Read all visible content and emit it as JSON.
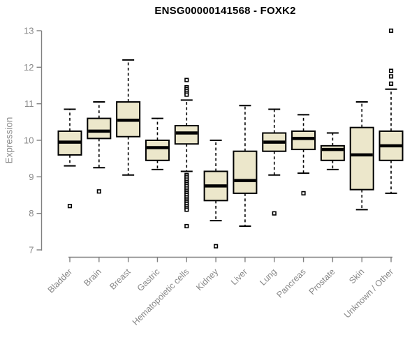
{
  "header": {
    "title": "ENSG00000141568 - FOXK2"
  },
  "chart_data": {
    "type": "boxplot",
    "title": "ENSG00000141568 - FOXK2",
    "xlabel": "",
    "ylabel": "Expression",
    "ylim": [
      7,
      13
    ],
    "yticks": [
      7,
      8,
      9,
      10,
      11,
      12,
      13
    ],
    "grid": false,
    "legend": false,
    "categories": [
      "Bladder",
      "Brain",
      "Breast",
      "Gastric",
      "Hematopoietic cells",
      "Kidney",
      "Liver",
      "Lung",
      "Pancreas",
      "Prostate",
      "Skin",
      "Unknown / Other"
    ],
    "series": [
      {
        "category": "Bladder",
        "whisker_low": 9.3,
        "q1": 9.6,
        "median": 9.95,
        "q3": 10.25,
        "whisker_high": 10.85,
        "outliers": [
          8.2
        ]
      },
      {
        "category": "Brain",
        "whisker_low": 9.25,
        "q1": 10.05,
        "median": 10.25,
        "q3": 10.6,
        "whisker_high": 11.05,
        "outliers": [
          8.6
        ]
      },
      {
        "category": "Breast",
        "whisker_low": 9.05,
        "q1": 10.1,
        "median": 10.55,
        "q3": 11.05,
        "whisker_high": 12.2,
        "outliers": []
      },
      {
        "category": "Gastric",
        "whisker_low": 9.2,
        "q1": 9.45,
        "median": 9.8,
        "q3": 10.0,
        "whisker_high": 10.6,
        "outliers": []
      },
      {
        "category": "Hematopoietic cells",
        "whisker_low": 9.15,
        "q1": 9.9,
        "median": 10.2,
        "q3": 10.4,
        "whisker_high": 11.1,
        "outliers": [
          11.65,
          11.45,
          11.4,
          11.35,
          11.3,
          11.25,
          9.05,
          9.0,
          8.95,
          8.9,
          8.85,
          8.8,
          8.75,
          8.7,
          8.65,
          8.6,
          8.55,
          8.5,
          8.45,
          8.4,
          8.35,
          8.3,
          8.25,
          8.2,
          8.15,
          8.1,
          7.65
        ]
      },
      {
        "category": "Kidney",
        "whisker_low": 7.8,
        "q1": 8.35,
        "median": 8.75,
        "q3": 9.15,
        "whisker_high": 10.0,
        "outliers": [
          7.1
        ]
      },
      {
        "category": "Liver",
        "whisker_low": 7.65,
        "q1": 8.55,
        "median": 8.9,
        "q3": 9.7,
        "whisker_high": 10.95,
        "outliers": []
      },
      {
        "category": "Lung",
        "whisker_low": 9.05,
        "q1": 9.7,
        "median": 9.95,
        "q3": 10.2,
        "whisker_high": 10.85,
        "outliers": [
          8.0
        ]
      },
      {
        "category": "Pancreas",
        "whisker_low": 9.1,
        "q1": 9.75,
        "median": 10.05,
        "q3": 10.25,
        "whisker_high": 10.7,
        "outliers": [
          8.55
        ]
      },
      {
        "category": "Prostate",
        "whisker_low": 9.2,
        "q1": 9.45,
        "median": 9.75,
        "q3": 9.85,
        "whisker_high": 10.2,
        "outliers": []
      },
      {
        "category": "Skin",
        "whisker_low": 8.1,
        "q1": 8.65,
        "median": 9.6,
        "q3": 10.35,
        "whisker_high": 11.05,
        "outliers": []
      },
      {
        "category": "Unknown / Other",
        "whisker_low": 8.55,
        "q1": 9.45,
        "median": 9.85,
        "q3": 10.25,
        "whisker_high": 11.4,
        "outliers": [
          13.0,
          11.9,
          11.75,
          11.55
        ]
      }
    ],
    "colors": {
      "box_fill": "#ece7cb",
      "box_border": "#000000",
      "median": "#000000",
      "whisker": "#000000",
      "outlier": "#000000",
      "axis": "#808080",
      "tick_label": "#878787",
      "axis_label": "#8f8f8f",
      "title": "#000000",
      "background": "#ffffff"
    }
  }
}
